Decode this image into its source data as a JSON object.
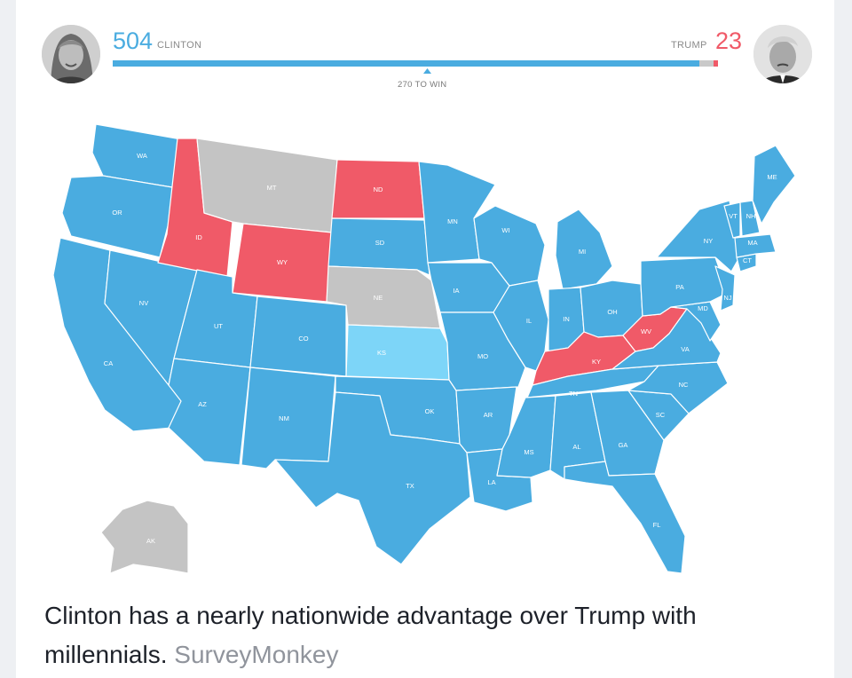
{
  "header": {
    "clinton": {
      "votes": "504",
      "label": "CLINTON",
      "color": "#4aace0"
    },
    "trump": {
      "votes": "23",
      "label": "TRUMP",
      "color": "#f05a68"
    },
    "tossup_color": "#c9c9c9",
    "threshold_label": "270 TO WIN"
  },
  "legend_colors": {
    "clinton": "#4aace0",
    "lean_clinton": "#7dd5f8",
    "trump": "#f05a68",
    "tossup": "#c4c4c4"
  },
  "map": {
    "states": [
      {
        "id": "WA",
        "label": "WA",
        "winner": "clinton"
      },
      {
        "id": "OR",
        "label": "OR",
        "winner": "clinton"
      },
      {
        "id": "CA",
        "label": "CA",
        "winner": "clinton"
      },
      {
        "id": "NV",
        "label": "NV",
        "winner": "clinton"
      },
      {
        "id": "ID",
        "label": "ID",
        "winner": "trump"
      },
      {
        "id": "MT",
        "label": "MT",
        "winner": "tossup"
      },
      {
        "id": "WY",
        "label": "WY",
        "winner": "trump"
      },
      {
        "id": "UT",
        "label": "UT",
        "winner": "clinton"
      },
      {
        "id": "AZ",
        "label": "AZ",
        "winner": "clinton"
      },
      {
        "id": "CO",
        "label": "CO",
        "winner": "clinton"
      },
      {
        "id": "NM",
        "label": "NM",
        "winner": "clinton"
      },
      {
        "id": "ND",
        "label": "ND",
        "winner": "trump"
      },
      {
        "id": "SD",
        "label": "SD",
        "winner": "clinton"
      },
      {
        "id": "NE",
        "label": "NE",
        "winner": "tossup"
      },
      {
        "id": "KS",
        "label": "KS",
        "winner": "lean_clinton"
      },
      {
        "id": "OK",
        "label": "OK",
        "winner": "clinton"
      },
      {
        "id": "TX",
        "label": "TX",
        "winner": "clinton"
      },
      {
        "id": "MN",
        "label": "MN",
        "winner": "clinton"
      },
      {
        "id": "IA",
        "label": "IA",
        "winner": "clinton"
      },
      {
        "id": "MO",
        "label": "MO",
        "winner": "clinton"
      },
      {
        "id": "AR",
        "label": "AR",
        "winner": "clinton"
      },
      {
        "id": "LA",
        "label": "LA",
        "winner": "clinton"
      },
      {
        "id": "WI",
        "label": "WI",
        "winner": "clinton"
      },
      {
        "id": "IL",
        "label": "IL",
        "winner": "clinton"
      },
      {
        "id": "MI",
        "label": "MI",
        "winner": "clinton"
      },
      {
        "id": "IN",
        "label": "IN",
        "winner": "clinton"
      },
      {
        "id": "OH",
        "label": "OH",
        "winner": "clinton"
      },
      {
        "id": "KY",
        "label": "KY",
        "winner": "trump"
      },
      {
        "id": "WV",
        "label": "WV",
        "winner": "trump"
      },
      {
        "id": "TN",
        "label": "TN",
        "winner": "clinton"
      },
      {
        "id": "MS",
        "label": "MS",
        "winner": "clinton"
      },
      {
        "id": "AL",
        "label": "AL",
        "winner": "clinton"
      },
      {
        "id": "GA",
        "label": "GA",
        "winner": "clinton"
      },
      {
        "id": "FL",
        "label": "FL",
        "winner": "clinton"
      },
      {
        "id": "SC",
        "label": "SC",
        "winner": "clinton"
      },
      {
        "id": "NC",
        "label": "NC",
        "winner": "clinton"
      },
      {
        "id": "VA",
        "label": "VA",
        "winner": "clinton"
      },
      {
        "id": "MD",
        "label": "MD",
        "winner": "clinton"
      },
      {
        "id": "PA",
        "label": "PA",
        "winner": "clinton"
      },
      {
        "id": "NY",
        "label": "NY",
        "winner": "clinton"
      },
      {
        "id": "NJ",
        "label": "NJ",
        "winner": "clinton"
      },
      {
        "id": "CT",
        "label": "CT",
        "winner": "clinton"
      },
      {
        "id": "MA",
        "label": "MA",
        "winner": "clinton"
      },
      {
        "id": "VT",
        "label": "VT",
        "winner": "clinton"
      },
      {
        "id": "NH",
        "label": "NH",
        "winner": "clinton"
      },
      {
        "id": "ME",
        "label": "ME",
        "winner": "clinton"
      },
      {
        "id": "AK",
        "label": "AK",
        "winner": "tossup"
      }
    ]
  },
  "caption": {
    "text": "Clinton has a nearly nationwide advantage over Trump with millennials.",
    "source": "SurveyMonkey"
  }
}
